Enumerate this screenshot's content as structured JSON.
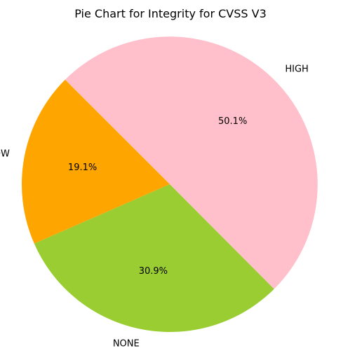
{
  "chart_data": {
    "type": "pie",
    "title": "Pie Chart for Integrity for CVSS V3",
    "slices": [
      {
        "label": "HIGH",
        "value": 50.1,
        "pct_label": "50.1%",
        "color": "#ffc0cb"
      },
      {
        "label": "NONE",
        "value": 30.9,
        "pct_label": "30.9%",
        "color": "#9acd32"
      },
      {
        "label": "LOW",
        "value": 19.1,
        "pct_label": "19.1%",
        "color": "#ffa500"
      }
    ],
    "start_angle_deg": 135,
    "direction": "clockwise",
    "legend": "none"
  }
}
